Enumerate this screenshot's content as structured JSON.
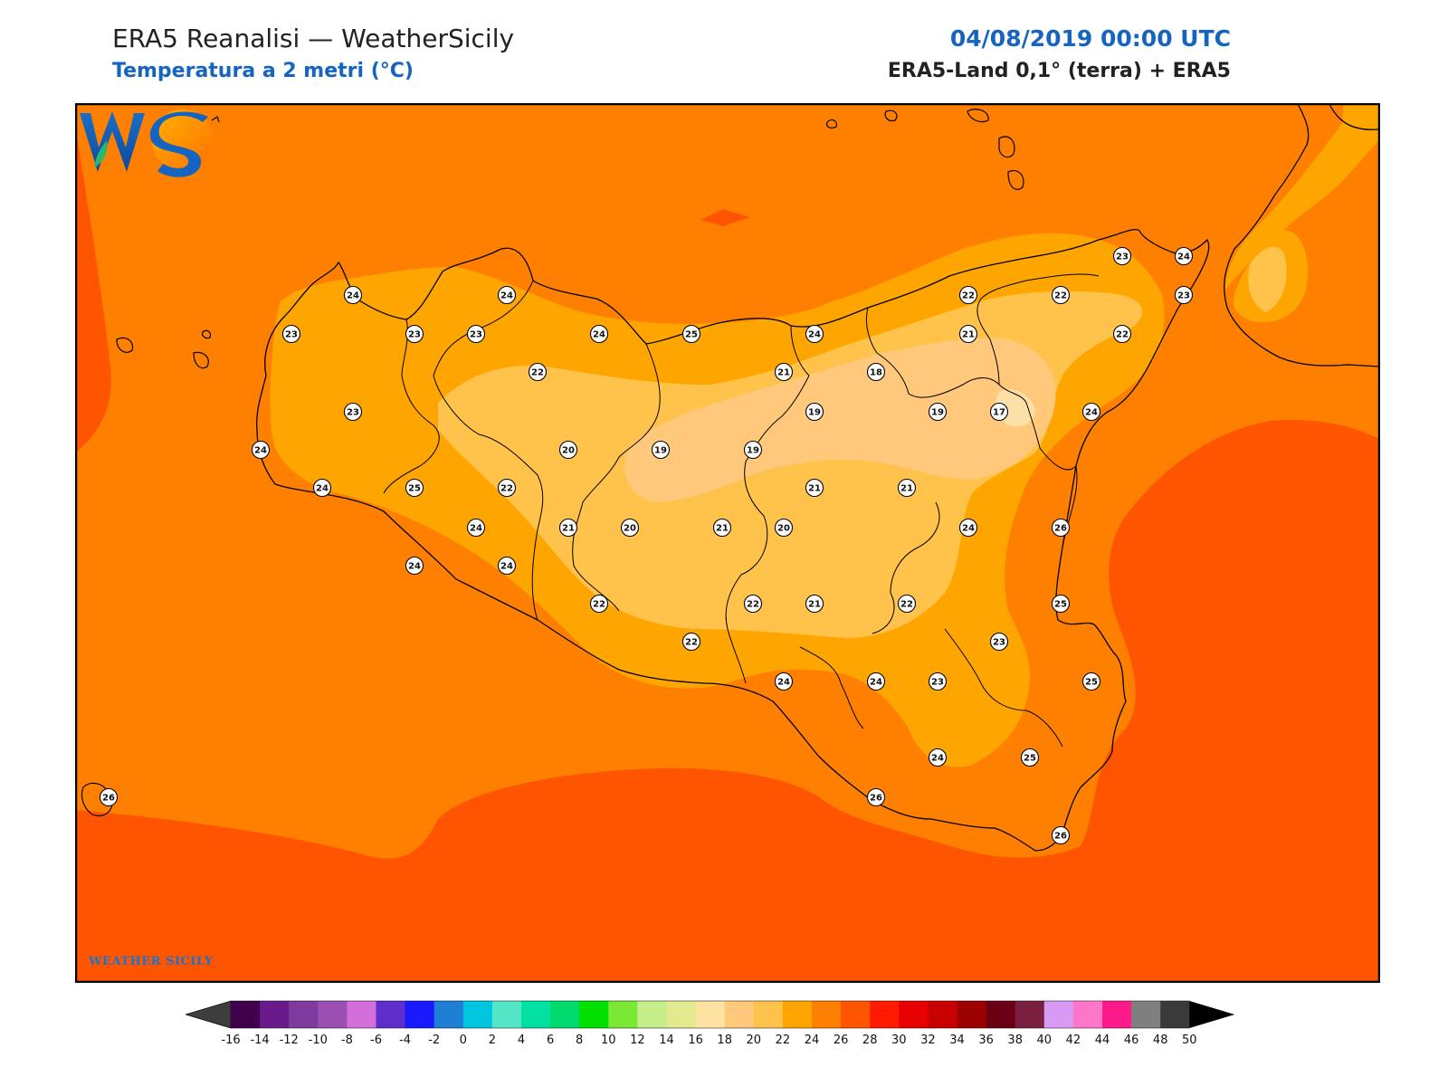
{
  "header": {
    "title": "ERA5 Reanalisi — WeatherSicily",
    "subtitle": "Temperatura a 2 metri (°C)",
    "datetime": "04/08/2019 00:00 UTC",
    "source": "ERA5-Land 0,1° (terra) + ERA5"
  },
  "colors": {
    "title": "#222222",
    "accent": "#1565c0",
    "t16": "#fde0a8",
    "t18": "#ffc87a",
    "t20": "#ffc24a",
    "t22": "#ffa500",
    "t24": "#ff8000",
    "t26": "#ff5500"
  },
  "colorbar": {
    "ticks": [
      "-16",
      "-14",
      "-12",
      "-10",
      "-8",
      "-6",
      "-4",
      "-2",
      "0",
      "2",
      "4",
      "6",
      "8",
      "10",
      "12",
      "14",
      "16",
      "18",
      "20",
      "22",
      "24",
      "26",
      "28",
      "30",
      "32",
      "34",
      "36",
      "38",
      "40",
      "42",
      "44",
      "46",
      "48",
      "50"
    ],
    "colors": [
      "#40004b",
      "#6a1a8a",
      "#7f3a9e",
      "#9b4fb3",
      "#d36edb",
      "#5f2dc9",
      "#1a1aff",
      "#1f7ed6",
      "#00c6e0",
      "#55e6c8",
      "#00e0a0",
      "#00d96e",
      "#00e000",
      "#7be835",
      "#c5ef8a",
      "#e3e98e",
      "#ffe3a3",
      "#ffc87a",
      "#ffc24a",
      "#ffa500",
      "#ff8000",
      "#ff5500",
      "#ff1a00",
      "#e60000",
      "#c70000",
      "#9c0000",
      "#6b0015",
      "#7a1f40",
      "#d89bf5",
      "#ff77c8",
      "#ff1a8c",
      "#7f7f7f",
      "#3a3a3a"
    ],
    "under_color": "#3d3d3d",
    "over_color": "#000000"
  },
  "stations": [
    {
      "name": "s1",
      "v": "24"
    },
    {
      "name": "s2",
      "v": "24"
    },
    {
      "name": "s3",
      "v": "23"
    },
    {
      "name": "s4",
      "v": "23"
    },
    {
      "name": "s5",
      "v": "23"
    },
    {
      "name": "s6",
      "v": "24"
    },
    {
      "name": "s7",
      "v": "25"
    },
    {
      "name": "s8",
      "v": "24"
    },
    {
      "name": "s9",
      "v": "22"
    },
    {
      "name": "s10",
      "v": "22"
    },
    {
      "name": "s11",
      "v": "23"
    },
    {
      "name": "s12",
      "v": "24"
    },
    {
      "name": "s13",
      "v": "22"
    },
    {
      "name": "s14",
      "v": "23"
    },
    {
      "name": "s15",
      "v": "23"
    },
    {
      "name": "s16",
      "v": "22"
    },
    {
      "name": "s17",
      "v": "21"
    },
    {
      "name": "s18",
      "v": "21"
    },
    {
      "name": "s19",
      "v": "18"
    },
    {
      "name": "s20",
      "v": "24"
    },
    {
      "name": "s21",
      "v": "19"
    },
    {
      "name": "s22",
      "v": "19"
    },
    {
      "name": "s23",
      "v": "17"
    },
    {
      "name": "s24",
      "v": "24"
    },
    {
      "name": "s25",
      "v": "20"
    },
    {
      "name": "s26",
      "v": "19"
    },
    {
      "name": "s27",
      "v": "19"
    },
    {
      "name": "s28",
      "v": "24"
    },
    {
      "name": "s29",
      "v": "25"
    },
    {
      "name": "s30",
      "v": "24"
    },
    {
      "name": "s31",
      "v": "22"
    },
    {
      "name": "s32",
      "v": "21"
    },
    {
      "name": "s33",
      "v": "21"
    },
    {
      "name": "s34",
      "v": "24"
    },
    {
      "name": "s35",
      "v": "21"
    },
    {
      "name": "s36",
      "v": "20"
    },
    {
      "name": "s37",
      "v": "21"
    },
    {
      "name": "s38",
      "v": "20"
    },
    {
      "name": "s39",
      "v": "24"
    },
    {
      "name": "s40",
      "v": "26"
    },
    {
      "name": "s41",
      "v": "24"
    },
    {
      "name": "s42",
      "v": "22"
    },
    {
      "name": "s43",
      "v": "22"
    },
    {
      "name": "s44",
      "v": "21"
    },
    {
      "name": "s45",
      "v": "22"
    },
    {
      "name": "s46",
      "v": "25"
    },
    {
      "name": "s47",
      "v": "22"
    },
    {
      "name": "s48",
      "v": "23"
    },
    {
      "name": "s49",
      "v": "24"
    },
    {
      "name": "s50",
      "v": "24"
    },
    {
      "name": "s51",
      "v": "23"
    },
    {
      "name": "s52",
      "v": "25"
    },
    {
      "name": "s53",
      "v": "24"
    },
    {
      "name": "s54",
      "v": "25"
    },
    {
      "name": "s55",
      "v": "26"
    },
    {
      "name": "s56",
      "v": "26"
    },
    {
      "name": "s57",
      "v": "26"
    }
  ],
  "logo": {
    "letters": "WS",
    "text": "WEATHER SICILY"
  }
}
